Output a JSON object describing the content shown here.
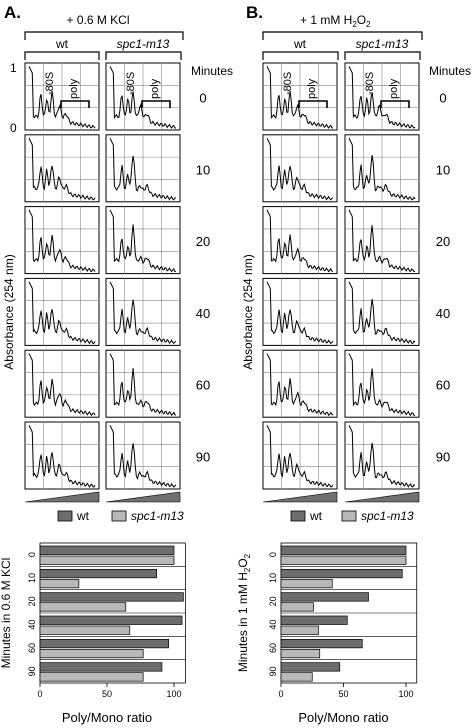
{
  "panels": [
    {
      "letter": "A.",
      "treatment": "+ 0.6 M KCl",
      "strains": [
        "wt",
        "spc1-m13"
      ],
      "peak_labels": {
        "mono": "-80S",
        "poly": "poly"
      },
      "ylabel": "Absorbance (254 nm)",
      "yticks": [
        "1",
        "0"
      ],
      "minutes_header": "Minutes",
      "time_points": [
        "0",
        "10",
        "20",
        "40",
        "60",
        "90"
      ]
    },
    {
      "letter": "B.",
      "treatment_prefix": "+ 1 mM H",
      "treatment_sub": "2",
      "treatment_mid": "O",
      "treatment_sub2": "2",
      "strains": [
        "wt",
        "spc1-m13"
      ],
      "peak_labels": {
        "mono": "-80S",
        "poly": "poly"
      },
      "ylabel": "Absorbance (254 nm)",
      "minutes_header": "Minutes",
      "time_points": [
        "0",
        "10",
        "20",
        "40",
        "60",
        "90"
      ]
    }
  ],
  "chart_data": [
    {
      "type": "bar",
      "orientation": "horizontal",
      "categories": [
        "0",
        "10",
        "20",
        "40",
        "60",
        "90"
      ],
      "series": [
        {
          "name": "wt",
          "values": [
            100,
            87,
            107,
            106,
            96,
            91
          ]
        },
        {
          "name": "spc1-m13",
          "values": [
            100,
            29,
            64,
            67,
            77,
            77
          ]
        }
      ],
      "xlabel": "Poly/Mono ratio",
      "ylabel": "Minutes in 0.6 M KCl",
      "xticks": [
        0,
        50,
        100
      ],
      "xlim": [
        0,
        107
      ],
      "colors": {
        "wt": "#6d6d6d",
        "spc1-m13": "#b8b8b8"
      },
      "legend": "top"
    },
    {
      "type": "bar",
      "orientation": "horizontal",
      "categories": [
        "0",
        "10",
        "20",
        "40",
        "60",
        "90"
      ],
      "series": [
        {
          "name": "wt",
          "values": [
            100,
            97,
            70,
            53,
            65,
            47
          ]
        },
        {
          "name": "spc1-m13",
          "values": [
            100,
            41,
            26,
            30,
            31,
            25
          ]
        }
      ],
      "xlabel": "Poly/Mono ratio",
      "ylabel_prefix": "Minutes in 1 mM H",
      "ylabel_sub": "2",
      "ylabel_mid": "O",
      "ylabel_sub2": "2",
      "xticks": [
        0,
        50,
        100
      ],
      "xlim": [
        0,
        107
      ],
      "colors": {
        "wt": "#6d6d6d",
        "spc1-m13": "#b8b8b8"
      },
      "legend": "top"
    }
  ]
}
